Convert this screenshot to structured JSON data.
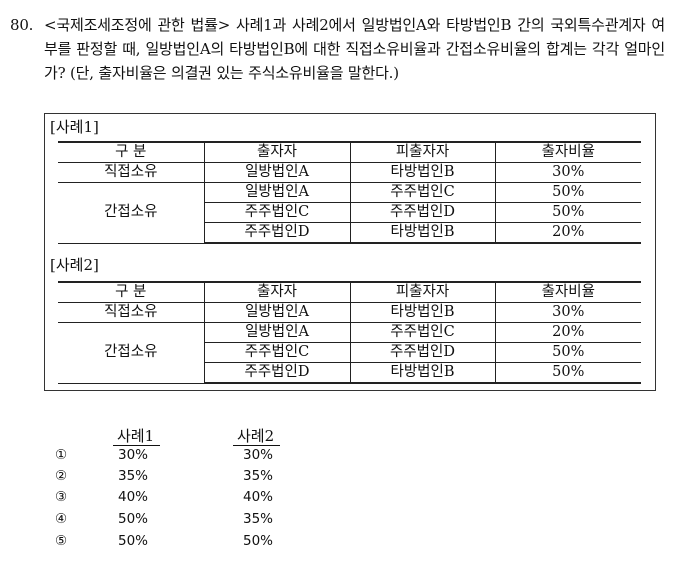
{
  "question": {
    "number": "80.",
    "text": "<국제조세조정에 관한 법률> 사례1과 사례2에서 일방법인A와 타방법인B 간의 국외특수관계자 여부를 판정할 때, 일방법인A의 타방법인B에 대한 직접소유비율과 간접소유비율의 합계는 각각 얼마인가? (단, 출자비율은 의결권 있는 주식소유비율을 말한다.)"
  },
  "cases": [
    {
      "label": "[사례1]",
      "headers": [
        "구 분",
        "출자자",
        "피출자자",
        "출자비율"
      ],
      "direct": {
        "category": "직접소유",
        "investor": "일방법인A",
        "investee": "타방법인B",
        "ratio": "30%"
      },
      "indirect_category": "간접소유",
      "indirect": [
        {
          "investor": "일방법인A",
          "investee": "주주법인C",
          "ratio": "50%"
        },
        {
          "investor": "주주법인C",
          "investee": "주주법인D",
          "ratio": "50%"
        },
        {
          "investor": "주주법인D",
          "investee": "타방법인B",
          "ratio": "20%"
        }
      ]
    },
    {
      "label": "[사례2]",
      "headers": [
        "구 분",
        "출자자",
        "피출자자",
        "출자비율"
      ],
      "direct": {
        "category": "직접소유",
        "investor": "일방법인A",
        "investee": "타방법인B",
        "ratio": "30%"
      },
      "indirect_category": "간접소유",
      "indirect": [
        {
          "investor": "일방법인A",
          "investee": "주주법인C",
          "ratio": "20%"
        },
        {
          "investor": "주주법인C",
          "investee": "주주법인D",
          "ratio": "50%"
        },
        {
          "investor": "주주법인D",
          "investee": "타방법인B",
          "ratio": "50%"
        }
      ]
    }
  ],
  "answers": {
    "col1": "사례1",
    "col2": "사례2",
    "options": [
      {
        "mark": "①",
        "case1": "30%",
        "case2": "30%"
      },
      {
        "mark": "②",
        "case1": "35%",
        "case2": "35%"
      },
      {
        "mark": "③",
        "case1": "40%",
        "case2": "40%"
      },
      {
        "mark": "④",
        "case1": "50%",
        "case2": "35%"
      },
      {
        "mark": "⑤",
        "case1": "50%",
        "case2": "50%"
      }
    ]
  }
}
